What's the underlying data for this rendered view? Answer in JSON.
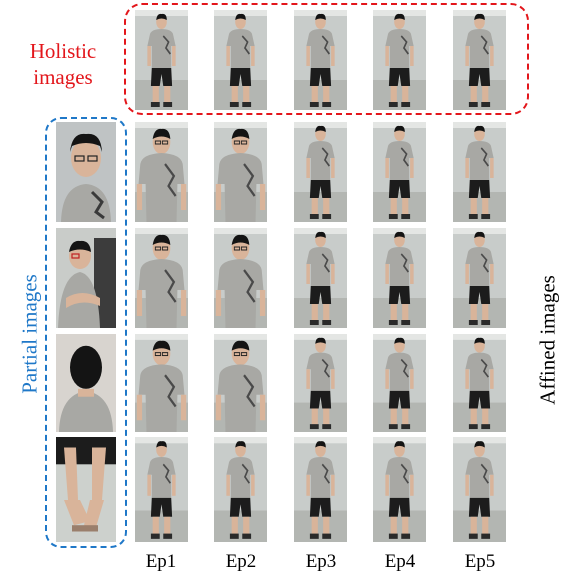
{
  "labels": {
    "holistic_line1": "Holistic",
    "holistic_line2": "images",
    "partial": "Partial images",
    "affined": "Affined images"
  },
  "episodes": [
    "Ep1",
    "Ep2",
    "Ep3",
    "Ep4",
    "Ep5"
  ],
  "colors": {
    "holistic": "#e3161b",
    "partial": "#1f78c8",
    "shirt": "#a8a8a4",
    "shorts": "#1c1c1c",
    "skin": "#d9b49a",
    "hair": "#141414"
  },
  "partial_images": [
    {
      "name": "partial-face"
    },
    {
      "name": "partial-sitting"
    },
    {
      "name": "partial-back"
    },
    {
      "name": "partial-legs"
    }
  ]
}
